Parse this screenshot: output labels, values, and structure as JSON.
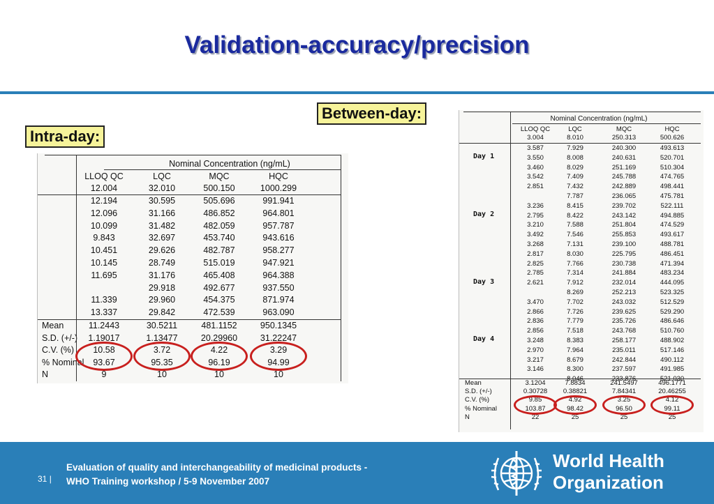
{
  "title": "Validation-accuracy/precision",
  "labels": {
    "intra": "Intra-day:",
    "between": "Between-day:"
  },
  "intra": {
    "heading": "Nominal Concentration (ng/mL)",
    "columns": [
      "LLOQ QC",
      "LQC",
      "MQC",
      "HQC"
    ],
    "nominal": [
      "12.004",
      "32.010",
      "500.150",
      "1000.299"
    ],
    "rows": [
      [
        "12.194",
        "30.595",
        "505.696",
        "991.941"
      ],
      [
        "12.096",
        "31.166",
        "486.852",
        "964.801"
      ],
      [
        "10.099",
        "31.482",
        "482.059",
        "957.787"
      ],
      [
        "9.843",
        "32.697",
        "453.740",
        "943.616"
      ],
      [
        "10.451",
        "29.626",
        "482.787",
        "958.277"
      ],
      [
        "10.145",
        "28.749",
        "515.019",
        "947.921"
      ],
      [
        "11.695",
        "31.176",
        "465.408",
        "964.388"
      ],
      [
        "",
        "29.918",
        "492.677",
        "937.550"
      ],
      [
        "11.339",
        "29.960",
        "454.375",
        "871.974"
      ],
      [
        "13.337",
        "29.842",
        "472.539",
        "963.090"
      ]
    ],
    "stats": [
      {
        "label": "Mean",
        "values": [
          "11.2443",
          "30.5211",
          "481.1152",
          "950.1345"
        ]
      },
      {
        "label": "S.D. (+/-)",
        "values": [
          "1.19017",
          "1.13477",
          "20.29960",
          "31.22247"
        ]
      },
      {
        "label": "C.V. (%)",
        "values": [
          "10.58",
          "3.72",
          "4.22",
          "3.29"
        ]
      },
      {
        "label": "% Nominal",
        "values": [
          "93.67",
          "95.35",
          "96.19",
          "94.99"
        ]
      },
      {
        "label": "N",
        "values": [
          "9",
          "10",
          "10",
          "10"
        ]
      }
    ]
  },
  "between": {
    "heading": "Nominal Concentration (ng/mL)",
    "columns": [
      "LLOQ QC",
      "LQC",
      "MQC",
      "HQC"
    ],
    "nominal": [
      "3.004",
      "8.010",
      "250.313",
      "500.626"
    ],
    "days": [
      "Day 1",
      "Day 2",
      "Day 3",
      "Day 4"
    ],
    "rows": [
      [
        "3.587",
        "7.929",
        "240.300",
        "493.613"
      ],
      [
        "3.550",
        "8.008",
        "240.631",
        "520.701"
      ],
      [
        "3.460",
        "8.029",
        "251.169",
        "510.304"
      ],
      [
        "3.542",
        "7.409",
        "245.788",
        "474.765"
      ],
      [
        "2.851",
        "7.432",
        "242.889",
        "498.441"
      ],
      [
        "",
        "7.787",
        "236.065",
        "475.781"
      ],
      [
        "3.236",
        "8.415",
        "239.702",
        "522.111"
      ],
      [
        "2.795",
        "8.422",
        "243.142",
        "494.885"
      ],
      [
        "3.210",
        "7.588",
        "251.804",
        "474.529"
      ],
      [
        "3.492",
        "7.546",
        "255.853",
        "493.617"
      ],
      [
        "3.268",
        "7.131",
        "239.100",
        "488.781"
      ],
      [
        "2.817",
        "8.030",
        "225.795",
        "486.451"
      ],
      [
        "2.825",
        "7.766",
        "230.738",
        "471.394"
      ],
      [
        "2.785",
        "7.314",
        "241.884",
        "483.234"
      ],
      [
        "2.621",
        "7.912",
        "232.014",
        "444.095"
      ],
      [
        "",
        "8.269",
        "252.213",
        "523.325"
      ],
      [
        "3.470",
        "7.702",
        "243.032",
        "512.529"
      ],
      [
        "2.866",
        "7.726",
        "239.625",
        "529.290"
      ],
      [
        "2.836",
        "7.779",
        "235.726",
        "486.646"
      ],
      [
        "2.856",
        "7.518",
        "243.768",
        "510.760"
      ],
      [
        "3.248",
        "8.383",
        "258.177",
        "488.902"
      ],
      [
        "2.970",
        "7.964",
        "235.011",
        "517.146"
      ],
      [
        "3.217",
        "8.679",
        "242.844",
        "490.112"
      ],
      [
        "3.146",
        "8.300",
        "237.597",
        "491.985"
      ],
      [
        "",
        "8.046",
        "233.876",
        "521.030"
      ]
    ],
    "stats": [
      {
        "label": "Mean",
        "values": [
          "3.1204",
          "7.8834",
          "241.5497",
          "496.1771"
        ]
      },
      {
        "label": "S.D. (+/-)",
        "values": [
          "0.30728",
          "0.38821",
          "7.84341",
          "20.46255"
        ]
      },
      {
        "label": "C.V. (%)",
        "values": [
          "9.85",
          "4.92",
          "3.25",
          "4.12"
        ]
      },
      {
        "label": "% Nominal",
        "values": [
          "103.87",
          "98.42",
          "96.50",
          "99.11"
        ]
      },
      {
        "label": "N",
        "values": [
          "22",
          "25",
          "25",
          "25"
        ]
      }
    ]
  },
  "footer": {
    "page_number": "31",
    "separator": "|",
    "line1": "Evaluation of quality and interchangeability of medicinal products -",
    "line2": "WHO Training workshop / 5-9 November 2007",
    "org_line1": "World Health",
    "org_line2": "Organization"
  },
  "colors": {
    "title": "#1a2a9e",
    "band": "#2a7fb8",
    "label_bg": "#f6f39a",
    "oval": "#c8201e"
  }
}
